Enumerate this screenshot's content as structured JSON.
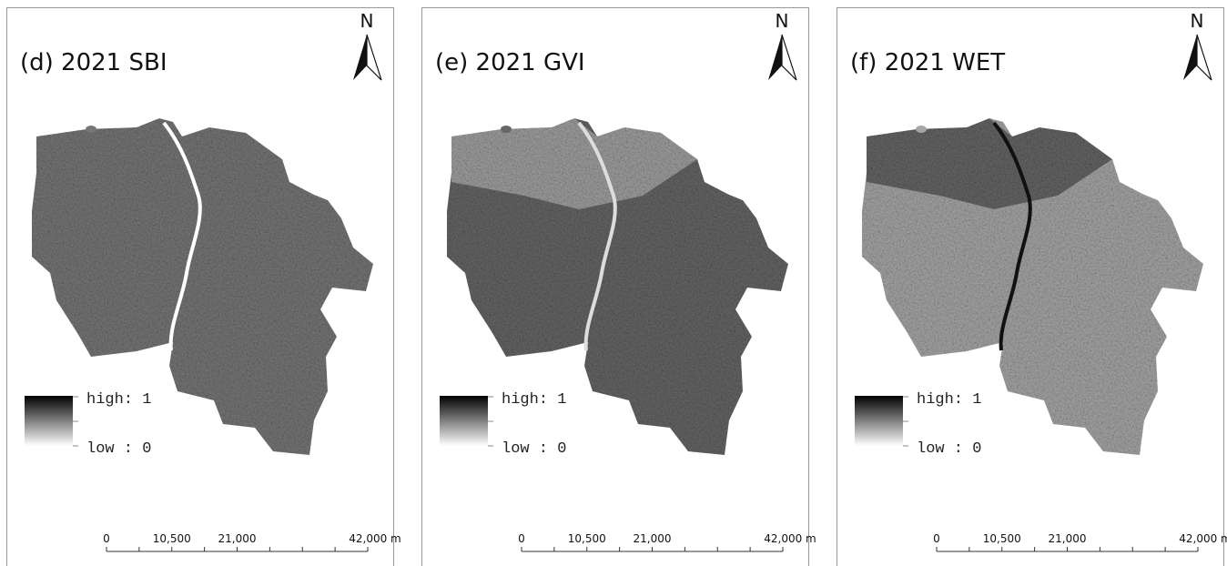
{
  "panels": [
    {
      "title": "(d) 2021 SBI",
      "north": "N",
      "legend": {
        "high": "high: 1",
        "low": "low : 0"
      },
      "scale_bar": [
        "0",
        "10,500",
        "21,000",
        "42,000 m"
      ]
    },
    {
      "title": "(e) 2021 GVI",
      "north": "N",
      "legend": {
        "high": "high: 1",
        "low": "low : 0"
      },
      "scale_bar": [
        "0",
        "10,500",
        "21,000",
        "42,000 m"
      ]
    },
    {
      "title": "(f) 2021 WET",
      "north": "N",
      "legend": {
        "high": "high: 1",
        "low": "low : 0"
      },
      "scale_bar": [
        "0",
        "10,500",
        "21,000",
        "42,000 m"
      ]
    }
  ]
}
